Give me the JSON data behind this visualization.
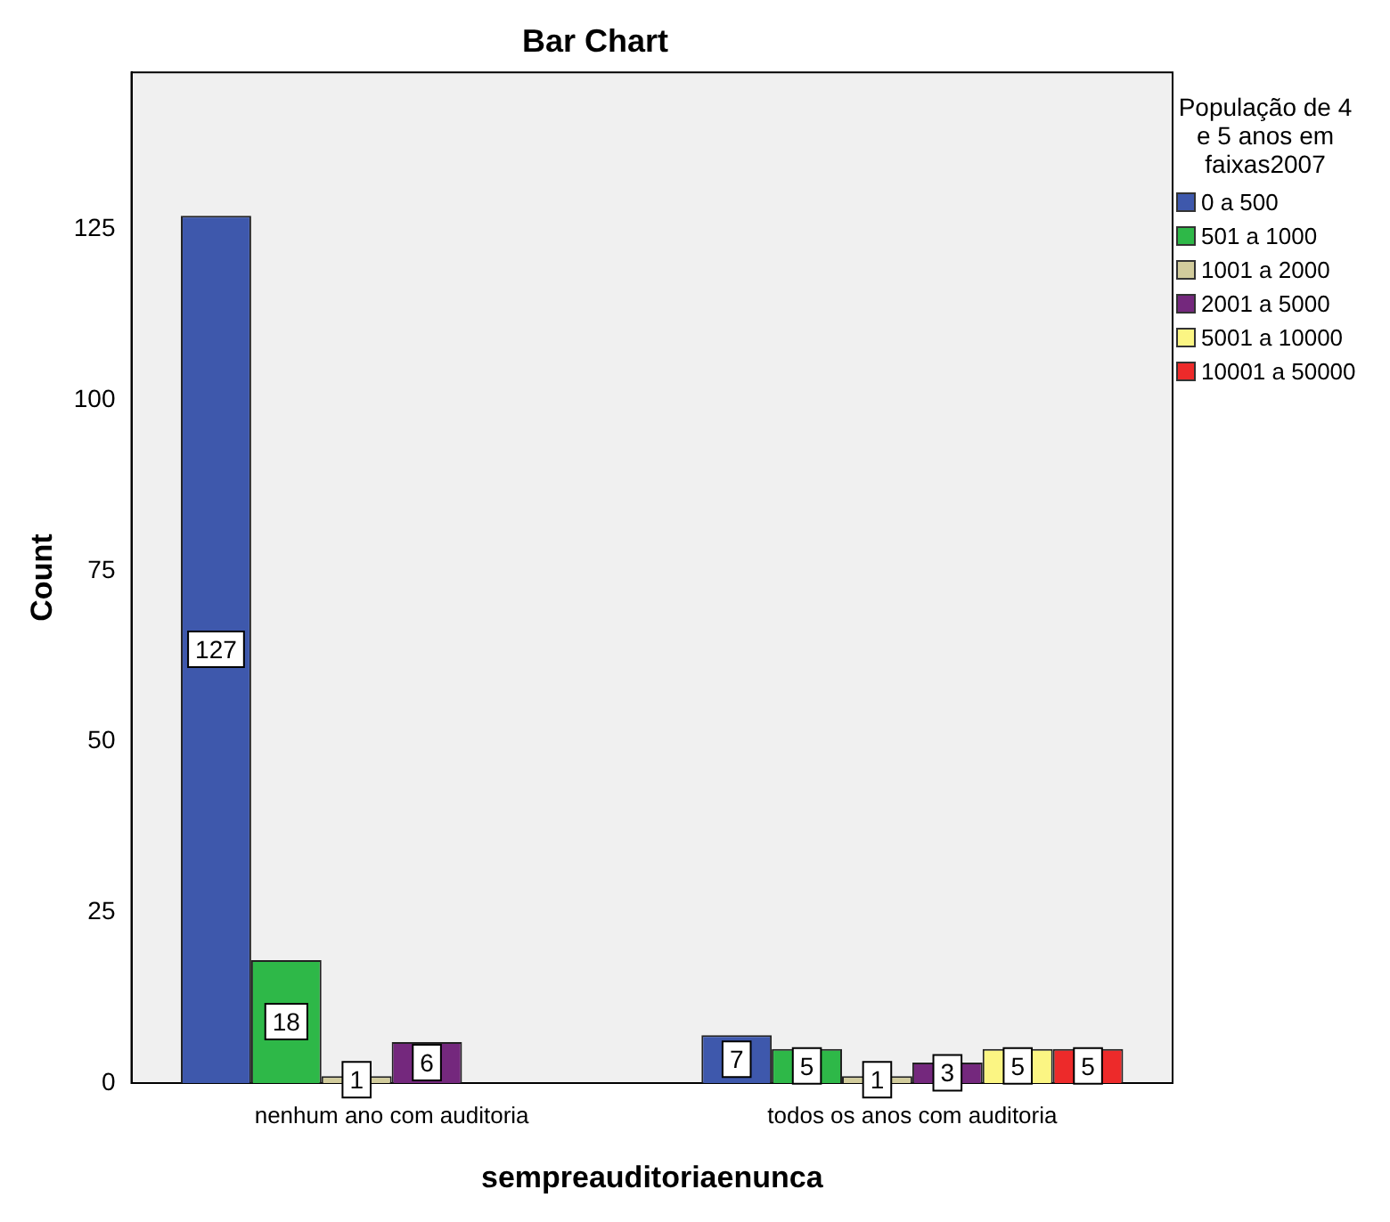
{
  "chart_data": {
    "type": "bar",
    "title": "Bar Chart",
    "xlabel": "sempreauditoriaenunca",
    "ylabel": "Count",
    "legend_title": "População de 4 e 5 anos em faixas2007",
    "categories": [
      "nenhum ano com auditoria",
      "todos os anos com auditoria"
    ],
    "series": [
      {
        "name": "0 a 500",
        "color": "#3e58ac",
        "values": [
          127,
          7
        ]
      },
      {
        "name": "501 a 1000",
        "color": "#2eb848",
        "values": [
          18,
          5
        ]
      },
      {
        "name": "1001 a 2000",
        "color": "#d2cc9c",
        "values": [
          1,
          1
        ]
      },
      {
        "name": "2001 a 5000",
        "color": "#74287d",
        "values": [
          6,
          3
        ]
      },
      {
        "name": "5001 a 10000",
        "color": "#fbf583",
        "values": [
          null,
          5
        ]
      },
      {
        "name": "10001 a 50000",
        "color": "#ed2a2a",
        "values": [
          null,
          5
        ]
      }
    ],
    "ylim": [
      0,
      148
    ],
    "yticks": [
      0,
      25,
      50,
      75,
      100,
      125
    ],
    "grid": false,
    "legend": "right",
    "data_labels": true
  }
}
